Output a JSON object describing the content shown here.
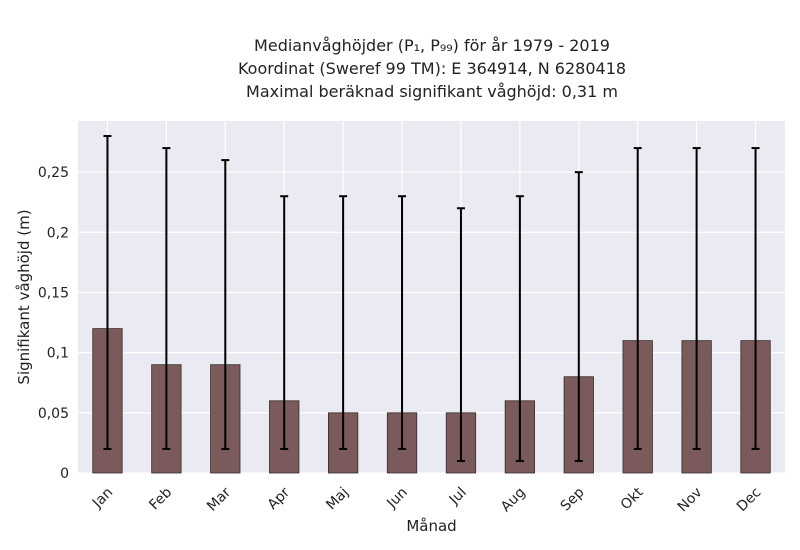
{
  "chart_data": {
    "type": "bar",
    "title_lines": [
      "Medianvåghöjder (P₁, P₉₉) för år 1979 - 2019",
      "Koordinat (Sweref 99 TM): E 364914, N 6280418",
      "Maximal beräknad signifikant våghöjd: 0,31 m"
    ],
    "xlabel": "Månad",
    "ylabel": "Signifikant våghöjd (m)",
    "categories": [
      "Jan",
      "Feb",
      "Mar",
      "Apr",
      "Maj",
      "Jun",
      "Jul",
      "Aug",
      "Sep",
      "Okt",
      "Nov",
      "Dec"
    ],
    "series": [
      {
        "values": [
          0.12,
          0.09,
          0.09,
          0.06,
          0.05,
          0.05,
          0.05,
          0.06,
          0.08,
          0.11,
          0.11,
          0.11
        ],
        "p1": [
          0.02,
          0.02,
          0.02,
          0.02,
          0.02,
          0.02,
          0.01,
          0.01,
          0.01,
          0.02,
          0.02,
          0.02
        ],
        "p99": [
          0.28,
          0.27,
          0.26,
          0.23,
          0.23,
          0.23,
          0.22,
          0.23,
          0.25,
          0.27,
          0.27,
          0.27
        ]
      }
    ],
    "yticks": [
      0,
      0.05,
      0.1,
      0.15,
      0.2,
      0.25
    ],
    "ytick_labels": [
      "0",
      "0,05",
      "0,1",
      "0,15",
      "0,2",
      "0,25"
    ],
    "ylim": [
      0,
      0.2925
    ],
    "grid": true,
    "colors": {
      "bar": "#7a5a5a",
      "bar_edge": "#3a2a2a",
      "error": "#000000",
      "plot_bg": "#eaeaf2",
      "grid": "#ffffff"
    }
  }
}
